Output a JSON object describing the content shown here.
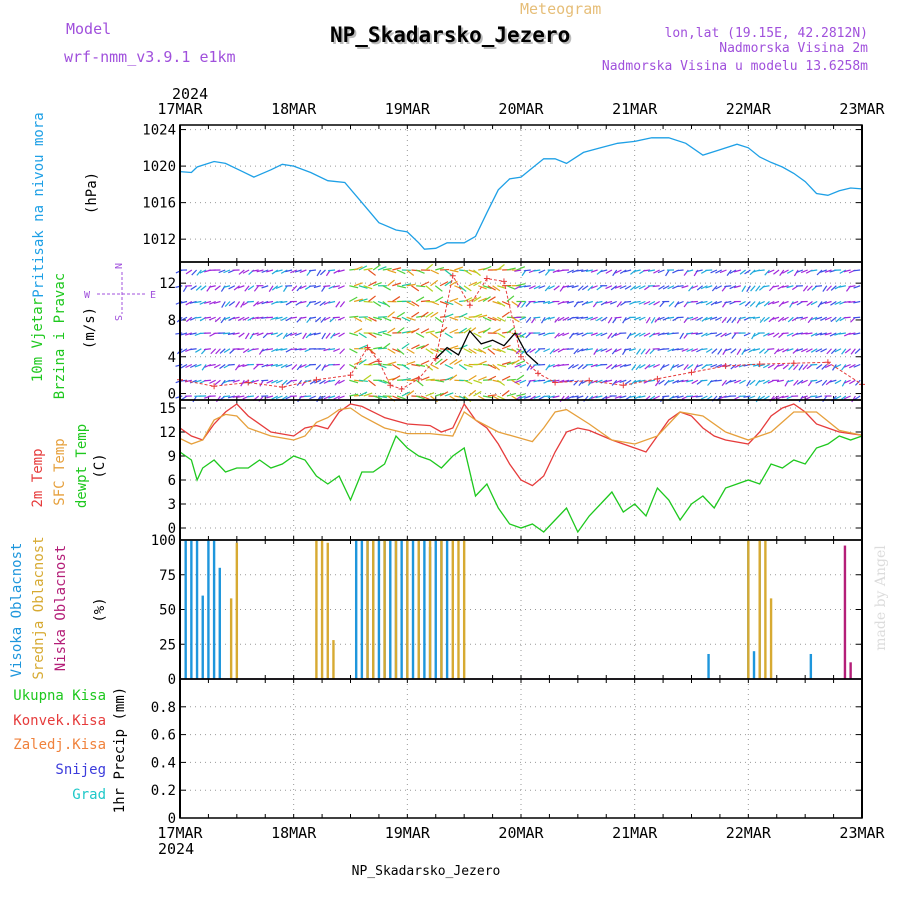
{
  "header": {
    "model_label": "Model",
    "model_name": "wrf-nmm_v3.9.1 e1km",
    "chart_type": "Meteogram",
    "station": "NP_Skadarsko_Jezero",
    "coords": "lon,lat (19.15E, 42.2812N)",
    "elevation": "Nadmorska Visina 2m",
    "model_elevation": "Nadmorska Visina u modelu 13.6258m"
  },
  "footer": {
    "station": "NP_Skadarsko_Jezero",
    "watermark": "made by Angel"
  },
  "colors": {
    "pressure": "#1ea0e6",
    "temp2m": "#e63c3c",
    "sfc": "#e6a03c",
    "dewpt": "#1ec81e",
    "high_cloud": "#1e96dc",
    "mid_cloud": "#d7aa32",
    "low_cloud": "#b41e78",
    "total_precip": "#1ec81e",
    "conv": "#e63c3c",
    "frozen": "#f0823c",
    "snow": "#3c3cdc",
    "hail": "#1ec8c8"
  },
  "chart_data": {
    "type": "line",
    "x_axis": {
      "year": "2024",
      "ticks": [
        "17MAR",
        "18MAR",
        "19MAR",
        "20MAR",
        "21MAR",
        "22MAR",
        "23MAR"
      ],
      "range_days": [
        0,
        6
      ]
    },
    "panels": [
      {
        "id": "pressure",
        "ylabels": [
          "Pritisak na nivou mora",
          "(hPa)"
        ],
        "ylim": [
          1009.5,
          1024.5
        ],
        "yticks": [
          1012,
          1016,
          1020,
          1024
        ],
        "series": [
          {
            "name": "Pritisak na nivou mora",
            "color": "#1ea0e6",
            "x": [
              0,
              0.1,
              0.15,
              0.3,
              0.4,
              0.55,
              0.65,
              0.8,
              0.9,
              1.0,
              1.15,
              1.3,
              1.45,
              1.6,
              1.75,
              1.9,
              2.0,
              2.1,
              2.15,
              2.25,
              2.35,
              2.5,
              2.6,
              2.7,
              2.8,
              2.9,
              3.0,
              3.1,
              3.2,
              3.3,
              3.4,
              3.55,
              3.7,
              3.85,
              4.0,
              4.15,
              4.3,
              4.45,
              4.6,
              4.75,
              4.9,
              5.0,
              5.1,
              5.2,
              5.3,
              5.4,
              5.5,
              5.6,
              5.7,
              5.8,
              5.9,
              6.0
            ],
            "y": [
              1019.4,
              1019.3,
              1019.9,
              1020.5,
              1020.3,
              1019.4,
              1018.8,
              1019.6,
              1020.2,
              1020.0,
              1019.3,
              1018.4,
              1018.2,
              1016.0,
              1013.8,
              1013.0,
              1012.8,
              1011.6,
              1010.9,
              1011.0,
              1011.6,
              1011.6,
              1012.3,
              1014.9,
              1017.4,
              1018.6,
              1018.8,
              1019.8,
              1020.8,
              1020.8,
              1020.3,
              1021.5,
              1022.0,
              1022.5,
              1022.7,
              1023.1,
              1023.1,
              1022.5,
              1021.2,
              1021.8,
              1022.4,
              1022.0,
              1021.0,
              1020.4,
              1019.9,
              1019.2,
              1018.3,
              1017.0,
              1016.8,
              1017.3,
              1017.6,
              1017.5
            ]
          }
        ]
      },
      {
        "id": "wind",
        "ylabels": [
          "10m Vjetar",
          "Brzina i Pravac",
          "(m/s)"
        ],
        "compass": {
          "n": "N",
          "s": "S",
          "w": "W",
          "e": "E"
        },
        "ylim": [
          -0.7,
          14.3
        ],
        "yticks": [
          0,
          4,
          8,
          12
        ],
        "series": [
          {
            "name": "wind speed",
            "color": "#000000",
            "x": [
              2.25,
              2.35,
              2.45,
              2.55,
              2.65,
              2.75,
              2.85,
              2.95,
              3.05,
              3.15
            ],
            "y": [
              3.8,
              5.0,
              4.2,
              6.8,
              5.4,
              5.8,
              5.2,
              6.6,
              4.3,
              3.2
            ]
          },
          {
            "name": "wind gust",
            "color": "#e63c3c",
            "x": [
              0,
              0.3,
              0.6,
              0.9,
              1.2,
              1.5,
              1.65,
              1.75,
              1.85,
              1.95,
              2.1,
              2.25,
              2.4,
              2.55,
              2.7,
              2.85,
              3.0,
              3.15,
              3.3,
              3.6,
              3.9,
              4.2,
              4.5,
              4.8,
              5.1,
              5.4,
              5.7,
              6.0
            ],
            "y": [
              1.5,
              0.8,
              1.2,
              0.7,
              1.5,
              2.0,
              5.0,
              3.5,
              0.9,
              0.5,
              1.6,
              3.8,
              12.8,
              9.6,
              12.5,
              12.2,
              4.0,
              2.2,
              1.2,
              1.4,
              0.9,
              1.6,
              2.3,
              3.0,
              3.2,
              3.3,
              3.4,
              1.0
            ]
          }
        ]
      },
      {
        "id": "temperature",
        "ylabels": [
          "2m Temp",
          "SFC Temp",
          "dewpt Temp",
          "(C)"
        ],
        "ylim": [
          -1.5,
          16
        ],
        "yticks": [
          0,
          3,
          6,
          9,
          12,
          15
        ],
        "series": [
          {
            "name": "2m Temp",
            "color": "#e63c3c",
            "x": [
              0,
              0.1,
              0.2,
              0.3,
              0.4,
              0.5,
              0.6,
              0.8,
              1.0,
              1.1,
              1.2,
              1.3,
              1.4,
              1.5,
              1.6,
              1.8,
              2.0,
              2.2,
              2.3,
              2.4,
              2.5,
              2.6,
              2.7,
              2.8,
              2.9,
              3.0,
              3.1,
              3.2,
              3.3,
              3.4,
              3.5,
              3.6,
              3.8,
              4.0,
              4.1,
              4.2,
              4.3,
              4.4,
              4.5,
              4.6,
              4.7,
              4.8,
              5.0,
              5.1,
              5.2,
              5.3,
              5.4,
              5.5,
              5.6,
              5.7,
              5.8,
              5.9,
              6.0
            ],
            "y": [
              12.5,
              11.5,
              11.0,
              13.0,
              14.5,
              15.5,
              14.0,
              12.0,
              11.5,
              12.5,
              12.8,
              12.4,
              14.5,
              15.5,
              15.2,
              13.8,
              13.0,
              12.8,
              12.0,
              12.5,
              15.5,
              13.5,
              12.5,
              10.5,
              8.0,
              6.0,
              5.3,
              6.5,
              9.5,
              12.0,
              12.5,
              12.2,
              11.0,
              10.0,
              9.5,
              11.5,
              13.5,
              14.5,
              14.0,
              12.5,
              11.5,
              11.0,
              10.5,
              12.0,
              14.0,
              15.0,
              15.5,
              14.5,
              13.0,
              12.5,
              12.0,
              11.8,
              11.6
            ]
          },
          {
            "name": "SFC Temp",
            "color": "#e6a03c",
            "x": [
              0,
              0.1,
              0.2,
              0.3,
              0.4,
              0.5,
              0.6,
              0.8,
              1.0,
              1.1,
              1.2,
              1.3,
              1.4,
              1.5,
              1.6,
              1.8,
              2.0,
              2.2,
              2.4,
              2.5,
              2.6,
              2.8,
              3.0,
              3.1,
              3.2,
              3.3,
              3.4,
              3.6,
              3.8,
              4.0,
              4.2,
              4.4,
              4.6,
              4.8,
              5.0,
              5.2,
              5.4,
              5.6,
              5.8,
              6.0
            ],
            "y": [
              11.2,
              10.5,
              11.0,
              13.5,
              14.2,
              14.0,
              12.5,
              11.5,
              11.0,
              11.5,
              13.2,
              13.8,
              14.8,
              15.0,
              14.0,
              12.5,
              11.8,
              11.8,
              11.5,
              14.5,
              13.5,
              12.0,
              11.2,
              10.8,
              12.5,
              14.5,
              14.8,
              13.0,
              11.0,
              10.5,
              11.5,
              14.5,
              14.0,
              12.0,
              11.0,
              12.0,
              14.5,
              14.5,
              12.2,
              11.6
            ]
          },
          {
            "name": "dewpt Temp",
            "color": "#1ec81e",
            "x": [
              0,
              0.1,
              0.15,
              0.2,
              0.3,
              0.4,
              0.5,
              0.6,
              0.7,
              0.8,
              0.9,
              1.0,
              1.1,
              1.2,
              1.3,
              1.4,
              1.5,
              1.6,
              1.7,
              1.8,
              1.9,
              2.0,
              2.1,
              2.2,
              2.3,
              2.4,
              2.5,
              2.6,
              2.7,
              2.8,
              2.9,
              3.0,
              3.1,
              3.2,
              3.3,
              3.4,
              3.5,
              3.6,
              3.7,
              3.8,
              3.9,
              4.0,
              4.1,
              4.2,
              4.3,
              4.4,
              4.5,
              4.6,
              4.7,
              4.8,
              4.9,
              5.0,
              5.1,
              5.2,
              5.3,
              5.4,
              5.5,
              5.6,
              5.7,
              5.8,
              5.9,
              6.0
            ],
            "y": [
              9.5,
              8.5,
              6.0,
              7.5,
              8.5,
              7.0,
              7.5,
              7.5,
              8.5,
              7.5,
              8.0,
              9.0,
              8.5,
              6.5,
              5.5,
              6.5,
              3.5,
              7.0,
              7.0,
              8.0,
              11.5,
              10.0,
              9.0,
              8.5,
              7.5,
              9.0,
              10.0,
              4.0,
              5.5,
              2.5,
              0.5,
              0.0,
              0.5,
              -0.5,
              1.0,
              2.5,
              -0.5,
              1.5,
              3.0,
              4.5,
              2.0,
              3.0,
              1.5,
              5.0,
              3.5,
              1.0,
              3.0,
              4.0,
              2.5,
              5.0,
              5.5,
              6.0,
              5.5,
              8.0,
              7.5,
              8.5,
              8.0,
              10.0,
              10.5,
              11.5,
              11.0,
              11.5
            ]
          }
        ]
      },
      {
        "id": "cloud",
        "ylabels": [
          "Visoka Oblacnost",
          "Srednja Oblacnost",
          "Niska Oblacnost",
          "(%)"
        ],
        "ylim": [
          0,
          100
        ],
        "yticks": [
          0,
          25,
          50,
          75,
          100
        ],
        "bars": [
          {
            "name": "Visoka Oblacnost",
            "color": "#1e96dc",
            "x": [
              0.05,
              0.1,
              0.15,
              0.2,
              0.25,
              0.3,
              0.35,
              1.55,
              1.6,
              1.65,
              1.7,
              1.75,
              1.8,
              1.85,
              1.9,
              1.95,
              2.0,
              2.05,
              2.1,
              2.15,
              2.2,
              2.25,
              2.3,
              2.35,
              4.65,
              5.0,
              5.05,
              5.1,
              5.55
            ],
            "y": [
              100,
              100,
              100,
              60,
              100,
              100,
              80,
              100,
              100,
              100,
              100,
              100,
              100,
              100,
              100,
              100,
              100,
              100,
              100,
              100,
              95,
              100,
              100,
              100,
              18,
              100,
              20,
              100,
              18
            ]
          },
          {
            "name": "Srednja Oblacnost",
            "color": "#d7aa32",
            "x": [
              0.45,
              0.5,
              1.2,
              1.25,
              1.3,
              1.35,
              1.65,
              1.7,
              1.8,
              1.9,
              2.0,
              2.1,
              2.2,
              2.3,
              2.4,
              2.45,
              2.5,
              5.0,
              5.1,
              5.15,
              5.2
            ],
            "y": [
              58,
              98,
              100,
              100,
              98,
              28,
              100,
              100,
              100,
              100,
              100,
              100,
              100,
              100,
              100,
              100,
              100,
              100,
              100,
              100,
              58
            ]
          },
          {
            "name": "Niska Oblacnost",
            "color": "#b41e78",
            "x": [
              5.85,
              5.9
            ],
            "y": [
              96,
              12
            ]
          }
        ]
      },
      {
        "id": "precip",
        "ylabels": [
          "1hr Precip (mm)"
        ],
        "legend": [
          "Ukupna Kisa",
          "Konvek.Kisa",
          "Zaledj.Kisa",
          "Snijeg",
          "Grad"
        ],
        "ylim": [
          0,
          1.0
        ],
        "yticks": [
          0,
          0.2,
          0.4,
          0.6,
          0.8
        ],
        "series": []
      }
    ]
  }
}
